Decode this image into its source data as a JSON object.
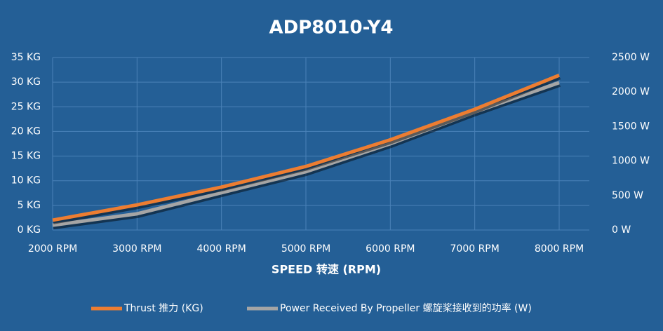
{
  "chart_data": {
    "type": "line",
    "title": "ADP8010-Y4",
    "x_label": "SPEED 转速 (RPM)",
    "categories": [
      "2000 RPM",
      "3000 RPM",
      "4000 RPM",
      "5000 RPM",
      "6000 RPM",
      "7000 RPM",
      "8000 RPM"
    ],
    "series": [
      {
        "name": "Thrust 推力 (KG)",
        "color": "#ed7d31",
        "values": [
          2.0,
          5.1,
          8.7,
          12.9,
          18.3,
          24.5,
          31.4
        ]
      },
      {
        "name": "Power Received By Propeller 螺旋桨接收到的功率 (W)",
        "color": "#a5a5a5",
        "axis": "y2",
        "values": [
          70,
          235,
          540,
          845,
          1250,
          1710,
          2135
        ]
      }
    ],
    "ylim": [
      0,
      35
    ],
    "yticks": [
      {
        "value": 0,
        "label": "0 KG"
      },
      {
        "value": 5,
        "label": "5 KG"
      },
      {
        "value": 10,
        "label": "10 KG"
      },
      {
        "value": 15,
        "label": "15 KG"
      },
      {
        "value": 20,
        "label": "20 KG"
      },
      {
        "value": 25,
        "label": "25 KG"
      },
      {
        "value": 30,
        "label": "30 KG"
      },
      {
        "value": 35,
        "label": "35 KG"
      }
    ],
    "y2lim": [
      0,
      2500
    ],
    "y2ticks": [
      {
        "value": 0,
        "label": "0 W"
      },
      {
        "value": 500,
        "label": "500 W"
      },
      {
        "value": 1000,
        "label": "1000 W"
      },
      {
        "value": 1500,
        "label": "1500 W"
      },
      {
        "value": 2000,
        "label": "2000 W"
      },
      {
        "value": 2500,
        "label": "2500 W"
      }
    ],
    "grid": true,
    "legend": "bottom"
  }
}
